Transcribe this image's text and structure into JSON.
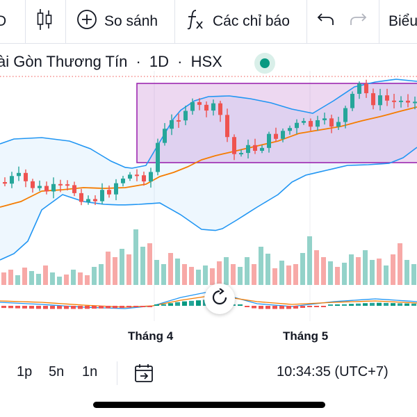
{
  "toolbar": {
    "interval_cut": "D",
    "compare_label": "So sánh",
    "indicators_label": "Các chỉ báo",
    "chart_type_cut": "Biểu"
  },
  "symbol": {
    "name_cut": "ài Gòn Thương Tín",
    "interval": "1D",
    "exchange": "HSX",
    "separator": "·"
  },
  "x_axis": {
    "label_april": "Tháng 4",
    "label_may": "Tháng 5"
  },
  "range_buttons": [
    "1p",
    "5n",
    "1n"
  ],
  "clock": "10:34:35 (UTC+7)",
  "colors": {
    "up": "#26a69a",
    "down": "#ef5350",
    "ma": "#f57c00",
    "band": "#2196f3",
    "box": "#9c27b0"
  },
  "icons": [
    "candles-icon",
    "plus-circle-icon",
    "function-icon",
    "undo-icon",
    "redo-icon",
    "go-to-date-icon",
    "reset-chart-icon"
  ]
}
